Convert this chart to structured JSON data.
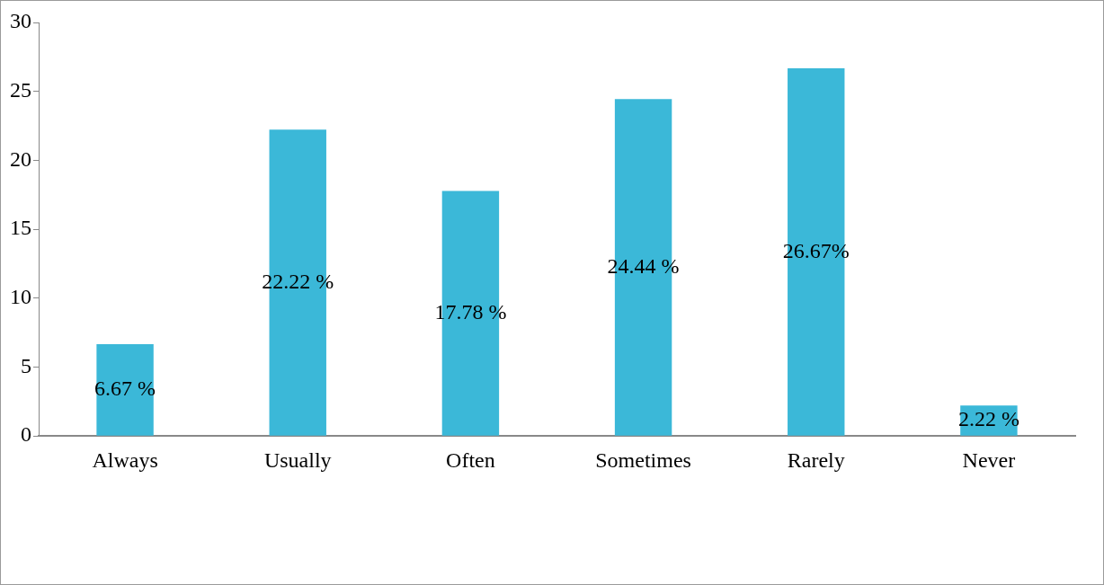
{
  "chart_data": {
    "type": "bar",
    "categories": [
      "Always",
      "Usually",
      "Often",
      "Sometimes",
      "Rarely",
      "Never"
    ],
    "values": [
      6.67,
      22.22,
      17.78,
      24.44,
      26.67,
      2.22
    ],
    "value_labels": [
      "6.67 %",
      "22.22 %",
      "17.78 %",
      "24.44 %",
      "26.67%",
      "2.22 %"
    ],
    "color": "#3bb8d8",
    "ylim": [
      0,
      30
    ],
    "yticks": [
      0,
      5,
      10,
      15,
      20,
      25,
      30
    ],
    "grid": false,
    "legend": false
  }
}
